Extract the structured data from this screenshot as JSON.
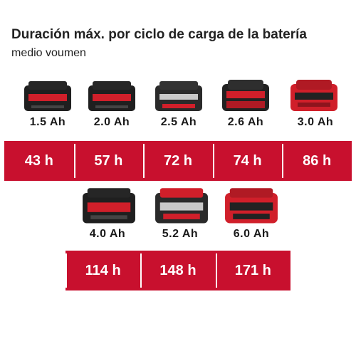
{
  "header": {
    "title": "Duración máx. por ciclo de carga de la batería",
    "subtitle": "medio voumen"
  },
  "colors": {
    "accent_red": "#c8102e",
    "battery_black": "#222222",
    "battery_red": "#d01f2a"
  },
  "row1": {
    "batteries": [
      {
        "capacity": "1.5 Ah",
        "icon": "battery-icon"
      },
      {
        "capacity": "2.0 Ah",
        "icon": "battery-icon"
      },
      {
        "capacity": "2.5 Ah",
        "icon": "battery-icon"
      },
      {
        "capacity": "2.6 Ah",
        "icon": "battery-icon"
      },
      {
        "capacity": "3.0 Ah",
        "icon": "battery-icon"
      }
    ],
    "durations": [
      "43 h",
      "57 h",
      "72 h",
      "74 h",
      "86 h"
    ]
  },
  "row2": {
    "batteries": [
      {
        "capacity": "4.0 Ah",
        "icon": "battery-icon"
      },
      {
        "capacity": "5.2 Ah",
        "icon": "battery-icon"
      },
      {
        "capacity": "6.0 Ah",
        "icon": "battery-icon"
      }
    ],
    "durations": [
      "114 h",
      "148 h",
      "171 h"
    ]
  }
}
